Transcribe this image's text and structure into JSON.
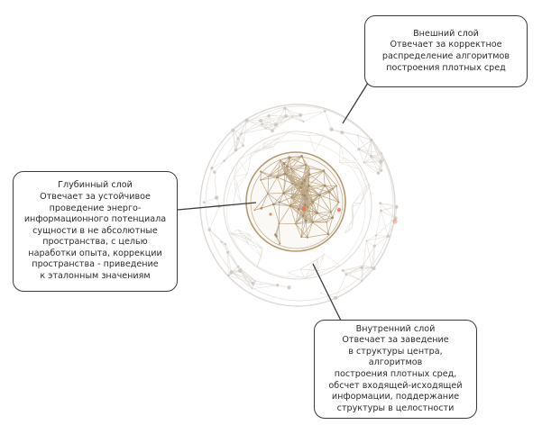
{
  "callouts": {
    "outer": {
      "title": "Внешний слой",
      "description": "Отвечает за корректное\nраспределение алгоритмов\nпостроения плотных сред"
    },
    "deep": {
      "title": "Глубинный слой",
      "description": "Отвечает за устойчивое\nпроведение энерго-\nинформационного потенциала\nсущности в не абсолютные\nпространства, с целью\nнаработки опыта, коррекции\nпространства - приведение\nк эталонным значениям"
    },
    "inner": {
      "title": "Внутренний слой",
      "description": "Отвечает за заведение\nв структуры центра, алгоритмов\nпостроения плотных сред,\nобсчет входящей-исходящей\nинформации, поддержание\nструктуры в целостности"
    }
  },
  "colors": {
    "outer_ring": "#d9d4d0",
    "middle_ring": "#e2ddd8",
    "core_mesh": "#b39a73",
    "core_node": "#9e865f",
    "accent_node": "#e8754a",
    "faint_node": "#c9c3be",
    "connector": "#3a3a3a"
  }
}
